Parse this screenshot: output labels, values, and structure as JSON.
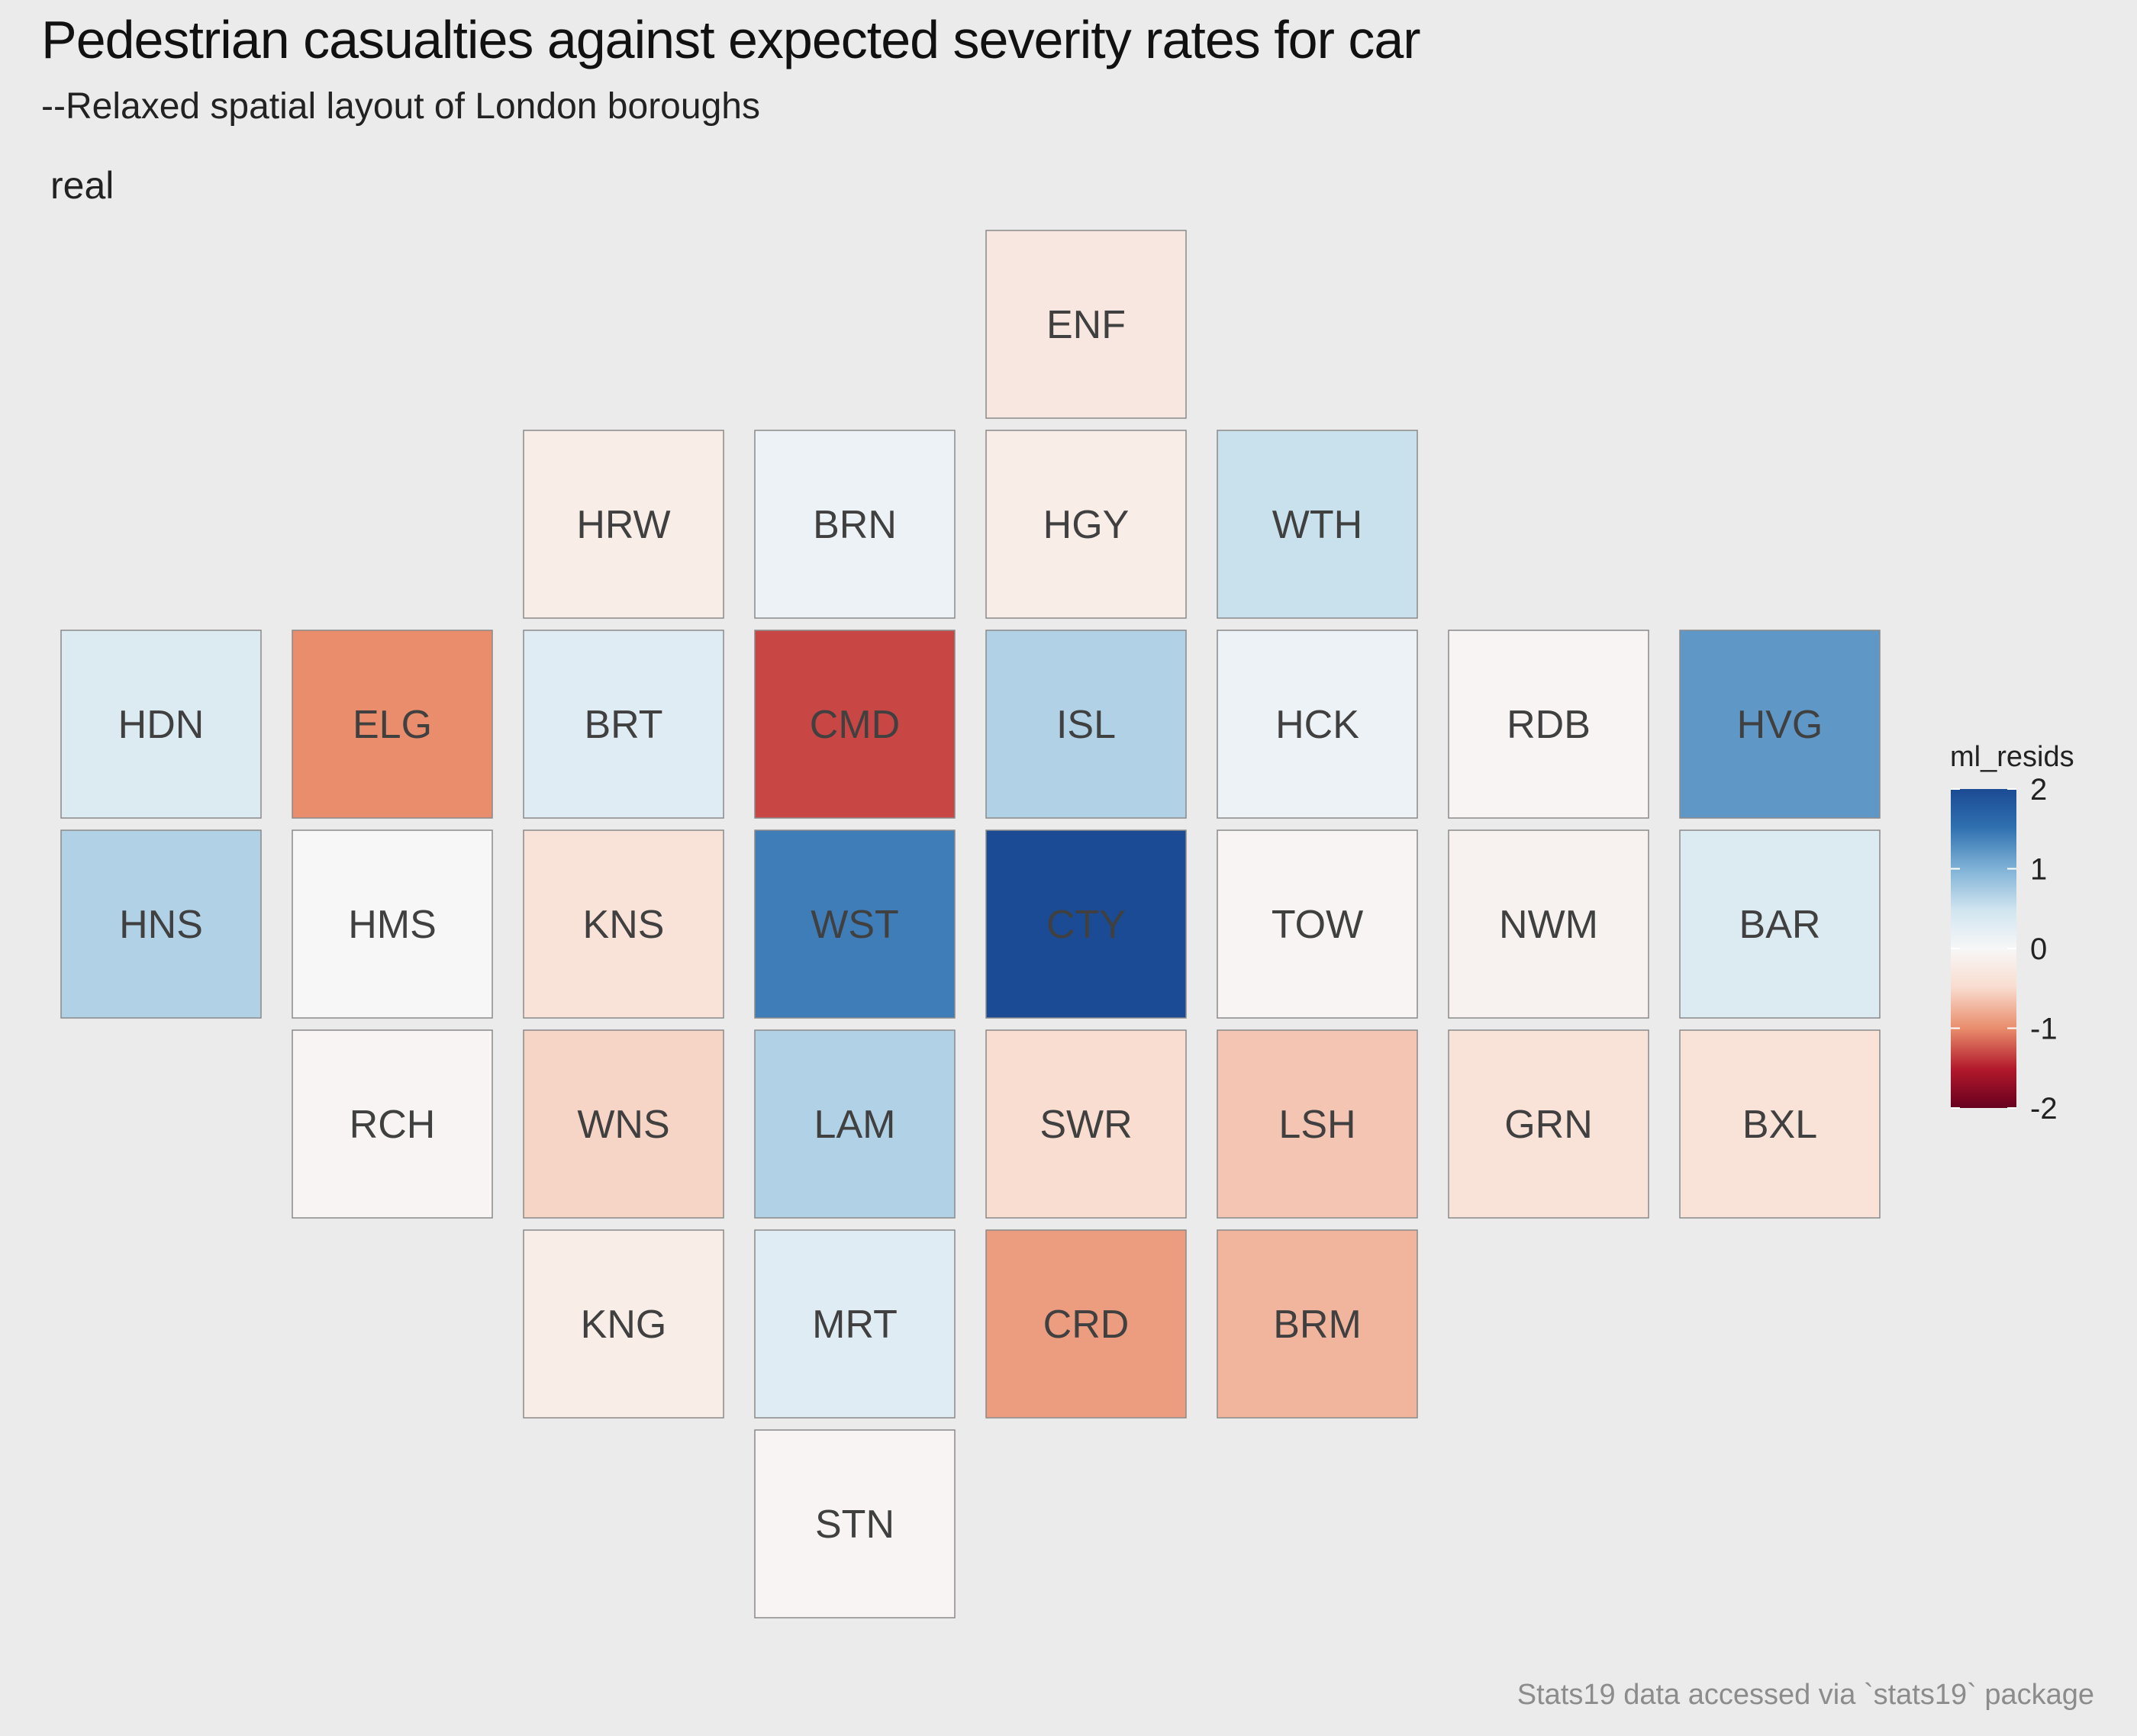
{
  "title": "Pedestrian casualties against expected severity rates for car",
  "subtitle": "--Relaxed spatial layout of London boroughs",
  "facet_label": "real",
  "caption": "Stats19 data accessed via `stats19` package",
  "chart_data": {
    "type": "heatmap",
    "title": "Pedestrian casualties against expected severity rates for car",
    "subtitle": "--Relaxed spatial layout of London boroughs",
    "facet": "real",
    "fill_variable": "ml_resids",
    "color_scale": {
      "type": "diverging",
      "limits": [
        -2,
        2
      ],
      "low": "#b2182b",
      "mid": "#f7f7f7",
      "high": "#2166ac",
      "ticks": [
        2,
        1,
        0,
        -1,
        -2
      ]
    },
    "grid_columns": 8,
    "grid_rows": 8,
    "tiles": [
      {
        "code": "ENF",
        "col": 5,
        "row": 1,
        "value": -0.3
      },
      {
        "code": "HRW",
        "col": 3,
        "row": 2,
        "value": -0.2
      },
      {
        "code": "BRN",
        "col": 4,
        "row": 2,
        "value": 0.15
      },
      {
        "code": "HGY",
        "col": 5,
        "row": 2,
        "value": -0.2
      },
      {
        "code": "WTH",
        "col": 6,
        "row": 2,
        "value": 0.55
      },
      {
        "code": "HDN",
        "col": 1,
        "row": 3,
        "value": 0.35
      },
      {
        "code": "ELG",
        "col": 2,
        "row": 3,
        "value": -1.0
      },
      {
        "code": "BRT",
        "col": 3,
        "row": 3,
        "value": 0.3
      },
      {
        "code": "CMD",
        "col": 4,
        "row": 3,
        "value": -1.3
      },
      {
        "code": "ISL",
        "col": 5,
        "row": 3,
        "value": 0.7
      },
      {
        "code": "HCK",
        "col": 6,
        "row": 3,
        "value": 0.15
      },
      {
        "code": "RDB",
        "col": 7,
        "row": 3,
        "value": -0.05
      },
      {
        "code": "HVG",
        "col": 8,
        "row": 3,
        "value": 1.2
      },
      {
        "code": "HNS",
        "col": 1,
        "row": 4,
        "value": 0.7
      },
      {
        "code": "HMS",
        "col": 2,
        "row": 4,
        "value": 0.0
      },
      {
        "code": "KNS",
        "col": 3,
        "row": 4,
        "value": -0.4
      },
      {
        "code": "WST",
        "col": 4,
        "row": 4,
        "value": 1.4
      },
      {
        "code": "CTY",
        "col": 5,
        "row": 4,
        "value": 2.0
      },
      {
        "code": "TOW",
        "col": 6,
        "row": 4,
        "value": -0.05
      },
      {
        "code": "NWM",
        "col": 7,
        "row": 4,
        "value": -0.1
      },
      {
        "code": "BAR",
        "col": 8,
        "row": 4,
        "value": 0.35
      },
      {
        "code": "RCH",
        "col": 2,
        "row": 5,
        "value": -0.05
      },
      {
        "code": "WNS",
        "col": 3,
        "row": 5,
        "value": -0.55
      },
      {
        "code": "LAM",
        "col": 4,
        "row": 5,
        "value": 0.7
      },
      {
        "code": "SWR",
        "col": 5,
        "row": 5,
        "value": -0.5
      },
      {
        "code": "LSH",
        "col": 6,
        "row": 5,
        "value": -0.65
      },
      {
        "code": "GRN",
        "col": 7,
        "row": 5,
        "value": -0.4
      },
      {
        "code": "BXL",
        "col": 8,
        "row": 5,
        "value": -0.4
      },
      {
        "code": "KNG",
        "col": 3,
        "row": 6,
        "value": -0.2
      },
      {
        "code": "MRT",
        "col": 4,
        "row": 6,
        "value": 0.3
      },
      {
        "code": "CRD",
        "col": 5,
        "row": 6,
        "value": -0.9
      },
      {
        "code": "BRM",
        "col": 6,
        "row": 6,
        "value": -0.75
      },
      {
        "code": "STN",
        "col": 4,
        "row": 7,
        "value": -0.05
      }
    ]
  }
}
